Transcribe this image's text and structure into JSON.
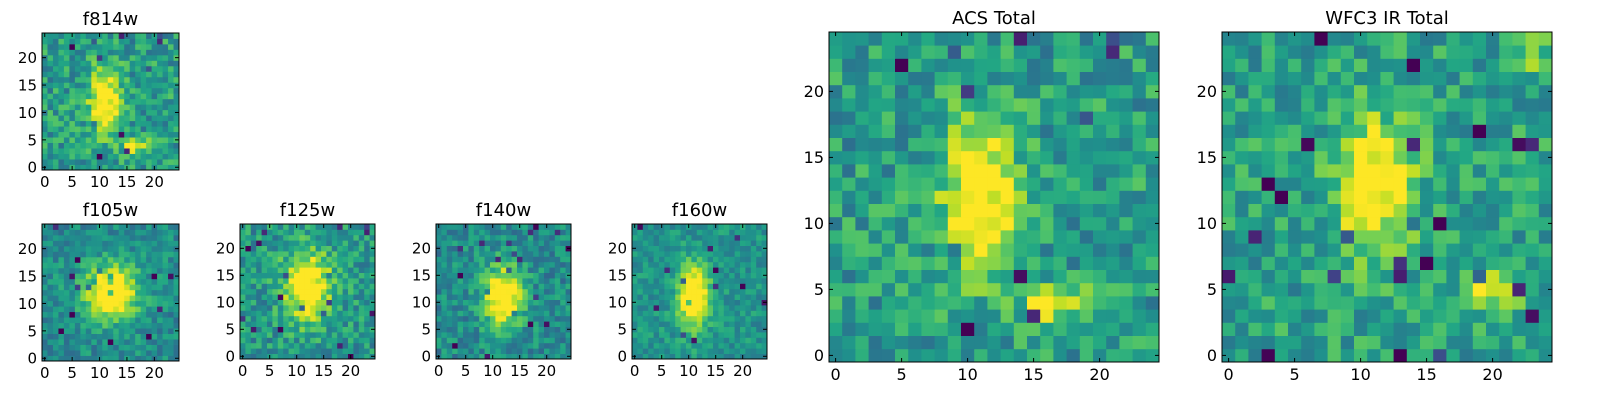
{
  "chart_data": [
    {
      "type": "heatmap",
      "title": "f814w",
      "x_ticks": [
        0,
        5,
        10,
        15,
        20
      ],
      "y_ticks": [
        0,
        5,
        10,
        15,
        20
      ],
      "xlim": [
        -0.5,
        24.5
      ],
      "ylim": [
        -0.5,
        24.5
      ],
      "grid_size": 25,
      "colormap": "viridis",
      "sources": [
        {
          "x": 11,
          "y": 12,
          "sx": 2.0,
          "sy": 4.0,
          "amp": 0.8
        },
        {
          "x": 17,
          "y": 4,
          "sx": 2.0,
          "sy": 1.0,
          "amp": 0.6
        }
      ],
      "noise": 0.25,
      "seed": 11
    },
    {
      "type": "heatmap",
      "title": "f105w",
      "x_ticks": [
        0,
        5,
        10,
        15,
        20
      ],
      "y_ticks": [
        0,
        5,
        10,
        15,
        20
      ],
      "xlim": [
        -0.5,
        24.5
      ],
      "ylim": [
        -0.5,
        24.5
      ],
      "grid_size": 25,
      "colormap": "viridis",
      "sources": [
        {
          "x": 12,
          "y": 12,
          "sx": 3.5,
          "sy": 3.5,
          "amp": 0.9
        }
      ],
      "noise": 0.18,
      "seed": 23
    },
    {
      "type": "heatmap",
      "title": "f125w",
      "x_ticks": [
        0,
        5,
        10,
        15,
        20
      ],
      "y_ticks": [
        0,
        5,
        10,
        15,
        20
      ],
      "xlim": [
        -0.5,
        24.5
      ],
      "ylim": [
        -0.5,
        24.5
      ],
      "grid_size": 25,
      "colormap": "viridis",
      "sources": [
        {
          "x": 12,
          "y": 13,
          "sx": 3.0,
          "sy": 4.5,
          "amp": 0.8
        }
      ],
      "noise": 0.22,
      "seed": 37
    },
    {
      "type": "heatmap",
      "title": "f140w",
      "x_ticks": [
        0,
        5,
        10,
        15,
        20
      ],
      "y_ticks": [
        0,
        5,
        10,
        15,
        20
      ],
      "xlim": [
        -0.5,
        24.5
      ],
      "ylim": [
        -0.5,
        24.5
      ],
      "grid_size": 25,
      "colormap": "viridis",
      "sources": [
        {
          "x": 12,
          "y": 11,
          "sx": 2.5,
          "sy": 4.0,
          "amp": 0.9
        }
      ],
      "noise": 0.2,
      "seed": 41
    },
    {
      "type": "heatmap",
      "title": "f160w",
      "x_ticks": [
        0,
        5,
        10,
        15,
        20
      ],
      "y_ticks": [
        0,
        5,
        10,
        15,
        20
      ],
      "xlim": [
        -0.5,
        24.5
      ],
      "ylim": [
        -0.5,
        24.5
      ],
      "grid_size": 25,
      "colormap": "viridis",
      "sources": [
        {
          "x": 11,
          "y": 11,
          "sx": 2.0,
          "sy": 4.0,
          "amp": 0.9
        }
      ],
      "noise": 0.15,
      "seed": 53
    },
    {
      "type": "heatmap",
      "title": "ACS Total",
      "x_ticks": [
        0,
        5,
        10,
        15,
        20
      ],
      "y_ticks": [
        0,
        5,
        10,
        15,
        20
      ],
      "xlim": [
        -0.5,
        24.5
      ],
      "ylim": [
        -0.5,
        24.5
      ],
      "grid_size": 25,
      "colormap": "viridis",
      "sources": [
        {
          "x": 11,
          "y": 12,
          "sx": 2.0,
          "sy": 4.0,
          "amp": 0.8
        },
        {
          "x": 17,
          "y": 4,
          "sx": 2.0,
          "sy": 1.0,
          "amp": 0.6
        }
      ],
      "noise": 0.25,
      "seed": 11
    },
    {
      "type": "heatmap",
      "title": "WFC3 IR Total",
      "x_ticks": [
        0,
        5,
        10,
        15,
        20
      ],
      "y_ticks": [
        0,
        5,
        10,
        15,
        20
      ],
      "xlim": [
        -0.5,
        24.5
      ],
      "ylim": [
        -0.5,
        24.5
      ],
      "grid_size": 25,
      "colormap": "viridis",
      "sources": [
        {
          "x": 11,
          "y": 13,
          "sx": 2.0,
          "sy": 3.5,
          "amp": 0.75
        },
        {
          "x": 20,
          "y": 5,
          "sx": 1.5,
          "sy": 1.0,
          "amp": 0.5
        },
        {
          "x": 24,
          "y": 23,
          "sx": 0.8,
          "sy": 1.0,
          "amp": 0.7
        }
      ],
      "noise": 0.22,
      "seed": 67
    }
  ]
}
